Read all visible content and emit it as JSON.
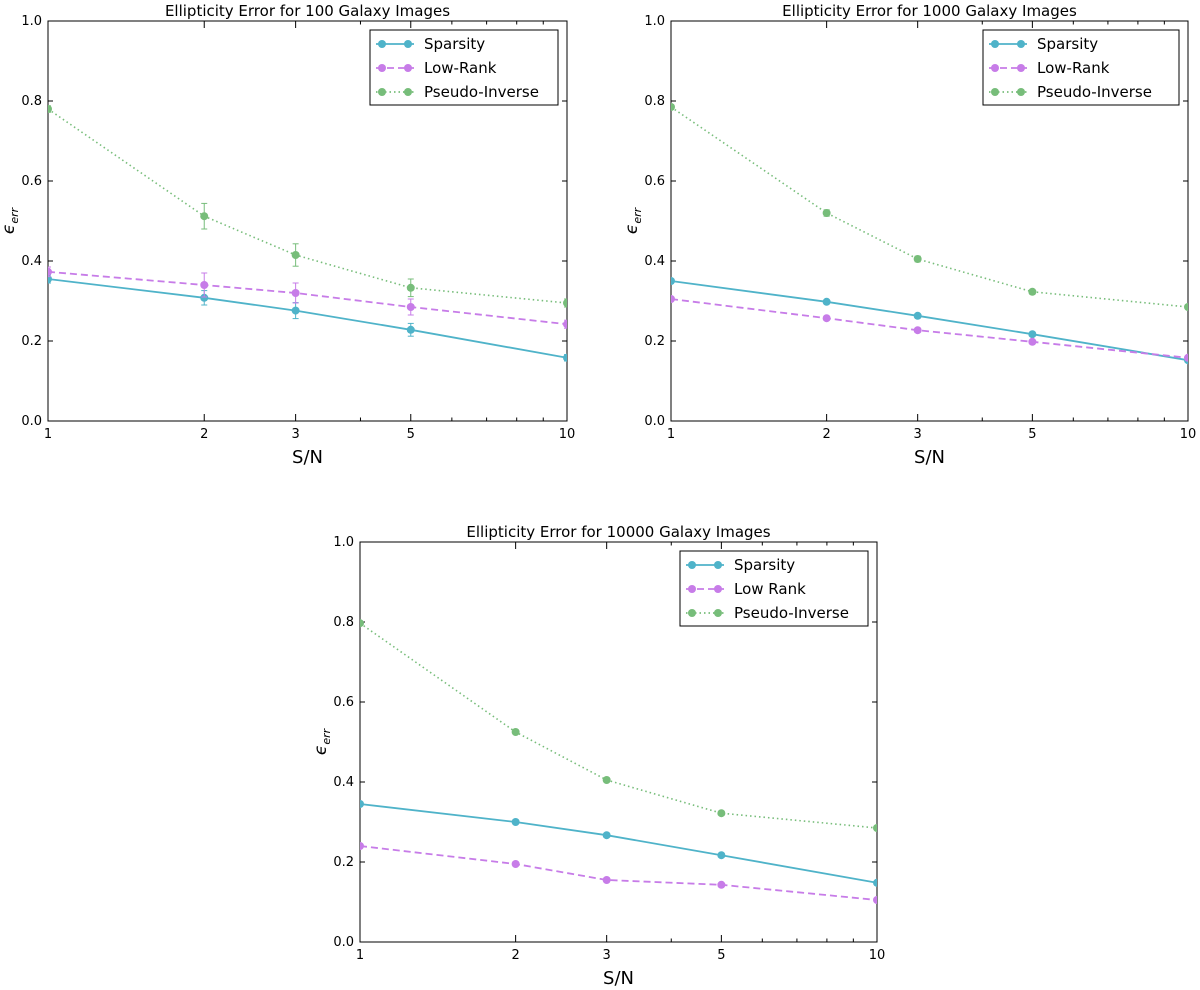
{
  "chart_data": [
    {
      "type": "line",
      "title": "Ellipticity Error for 100 Galaxy Images",
      "xlabel": "S/N",
      "ylabel_main": "ϵ",
      "ylabel_sub": "err",
      "xscale": "log",
      "x": [
        1,
        2,
        3,
        5,
        10
      ],
      "xticks": [
        "1",
        "2",
        "3",
        "5",
        "10"
      ],
      "ylim": [
        0.0,
        1.0
      ],
      "yticks": [
        "0.0",
        "0.2",
        "0.4",
        "0.6",
        "0.8",
        "1.0"
      ],
      "legend_position": "top-right",
      "series": [
        {
          "name": "Sparsity",
          "values": [
            0.355,
            0.308,
            0.276,
            0.228,
            0.158
          ],
          "errors": [
            0.01,
            0.018,
            0.02,
            0.016,
            0.008
          ],
          "color": "#4fb3c9",
          "style": "solid"
        },
        {
          "name": "Low-Rank",
          "values": [
            0.373,
            0.34,
            0.32,
            0.285,
            0.242
          ],
          "errors": [
            0.012,
            0.03,
            0.025,
            0.02,
            0.01
          ],
          "color": "#c77ce8",
          "style": "dashed"
        },
        {
          "name": "Pseudo-Inverse",
          "values": [
            0.78,
            0.512,
            0.415,
            0.333,
            0.295
          ],
          "errors": [
            0.008,
            0.032,
            0.028,
            0.022,
            0.01
          ],
          "color": "#77bd7a",
          "style": "dotted"
        }
      ]
    },
    {
      "type": "line",
      "title": "Ellipticity Error for 1000 Galaxy Images",
      "xlabel": "S/N",
      "ylabel_main": "ϵ",
      "ylabel_sub": "err",
      "xscale": "log",
      "x": [
        1,
        2,
        3,
        5,
        10
      ],
      "xticks": [
        "1",
        "2",
        "3",
        "5",
        "10"
      ],
      "ylim": [
        0.0,
        1.0
      ],
      "yticks": [
        "0.0",
        "0.2",
        "0.4",
        "0.6",
        "0.8",
        "1.0"
      ],
      "legend_position": "top-right",
      "series": [
        {
          "name": "Sparsity",
          "values": [
            0.35,
            0.298,
            0.263,
            0.217,
            0.152
          ],
          "errors": [
            0.005,
            0.005,
            0.005,
            0.005,
            0.004
          ],
          "color": "#4fb3c9",
          "style": "solid"
        },
        {
          "name": "Low-Rank",
          "values": [
            0.305,
            0.257,
            0.227,
            0.198,
            0.158
          ],
          "errors": [
            0.005,
            0.005,
            0.005,
            0.005,
            0.004
          ],
          "color": "#c77ce8",
          "style": "dashed"
        },
        {
          "name": "Pseudo-Inverse",
          "values": [
            0.785,
            0.52,
            0.405,
            0.323,
            0.285
          ],
          "errors": [
            0.006,
            0.008,
            0.007,
            0.006,
            0.005
          ],
          "color": "#77bd7a",
          "style": "dotted"
        }
      ]
    },
    {
      "type": "line",
      "title": "Ellipticity Error for 10000 Galaxy Images",
      "xlabel": "S/N",
      "ylabel_main": "ϵ",
      "ylabel_sub": "err",
      "xscale": "log",
      "x": [
        1,
        2,
        3,
        5,
        10
      ],
      "xticks": [
        "1",
        "2",
        "3",
        "5",
        "10"
      ],
      "ylim": [
        0.0,
        1.0
      ],
      "yticks": [
        "0.0",
        "0.2",
        "0.4",
        "0.6",
        "0.8",
        "1.0"
      ],
      "legend_position": "top-right",
      "series": [
        {
          "name": "Sparsity",
          "values": [
            0.345,
            0.3,
            0.267,
            0.217,
            0.148
          ],
          "errors": [
            0,
            0,
            0,
            0,
            0
          ],
          "color": "#4fb3c9",
          "style": "solid"
        },
        {
          "name": "Low Rank",
          "values": [
            0.24,
            0.195,
            0.155,
            0.143,
            0.105
          ],
          "errors": [
            0,
            0,
            0,
            0,
            0
          ],
          "color": "#c77ce8",
          "style": "dashed"
        },
        {
          "name": "Pseudo-Inverse",
          "values": [
            0.797,
            0.525,
            0.405,
            0.322,
            0.285
          ],
          "errors": [
            0,
            0,
            0,
            0,
            0
          ],
          "color": "#77bd7a",
          "style": "dotted"
        }
      ]
    }
  ]
}
